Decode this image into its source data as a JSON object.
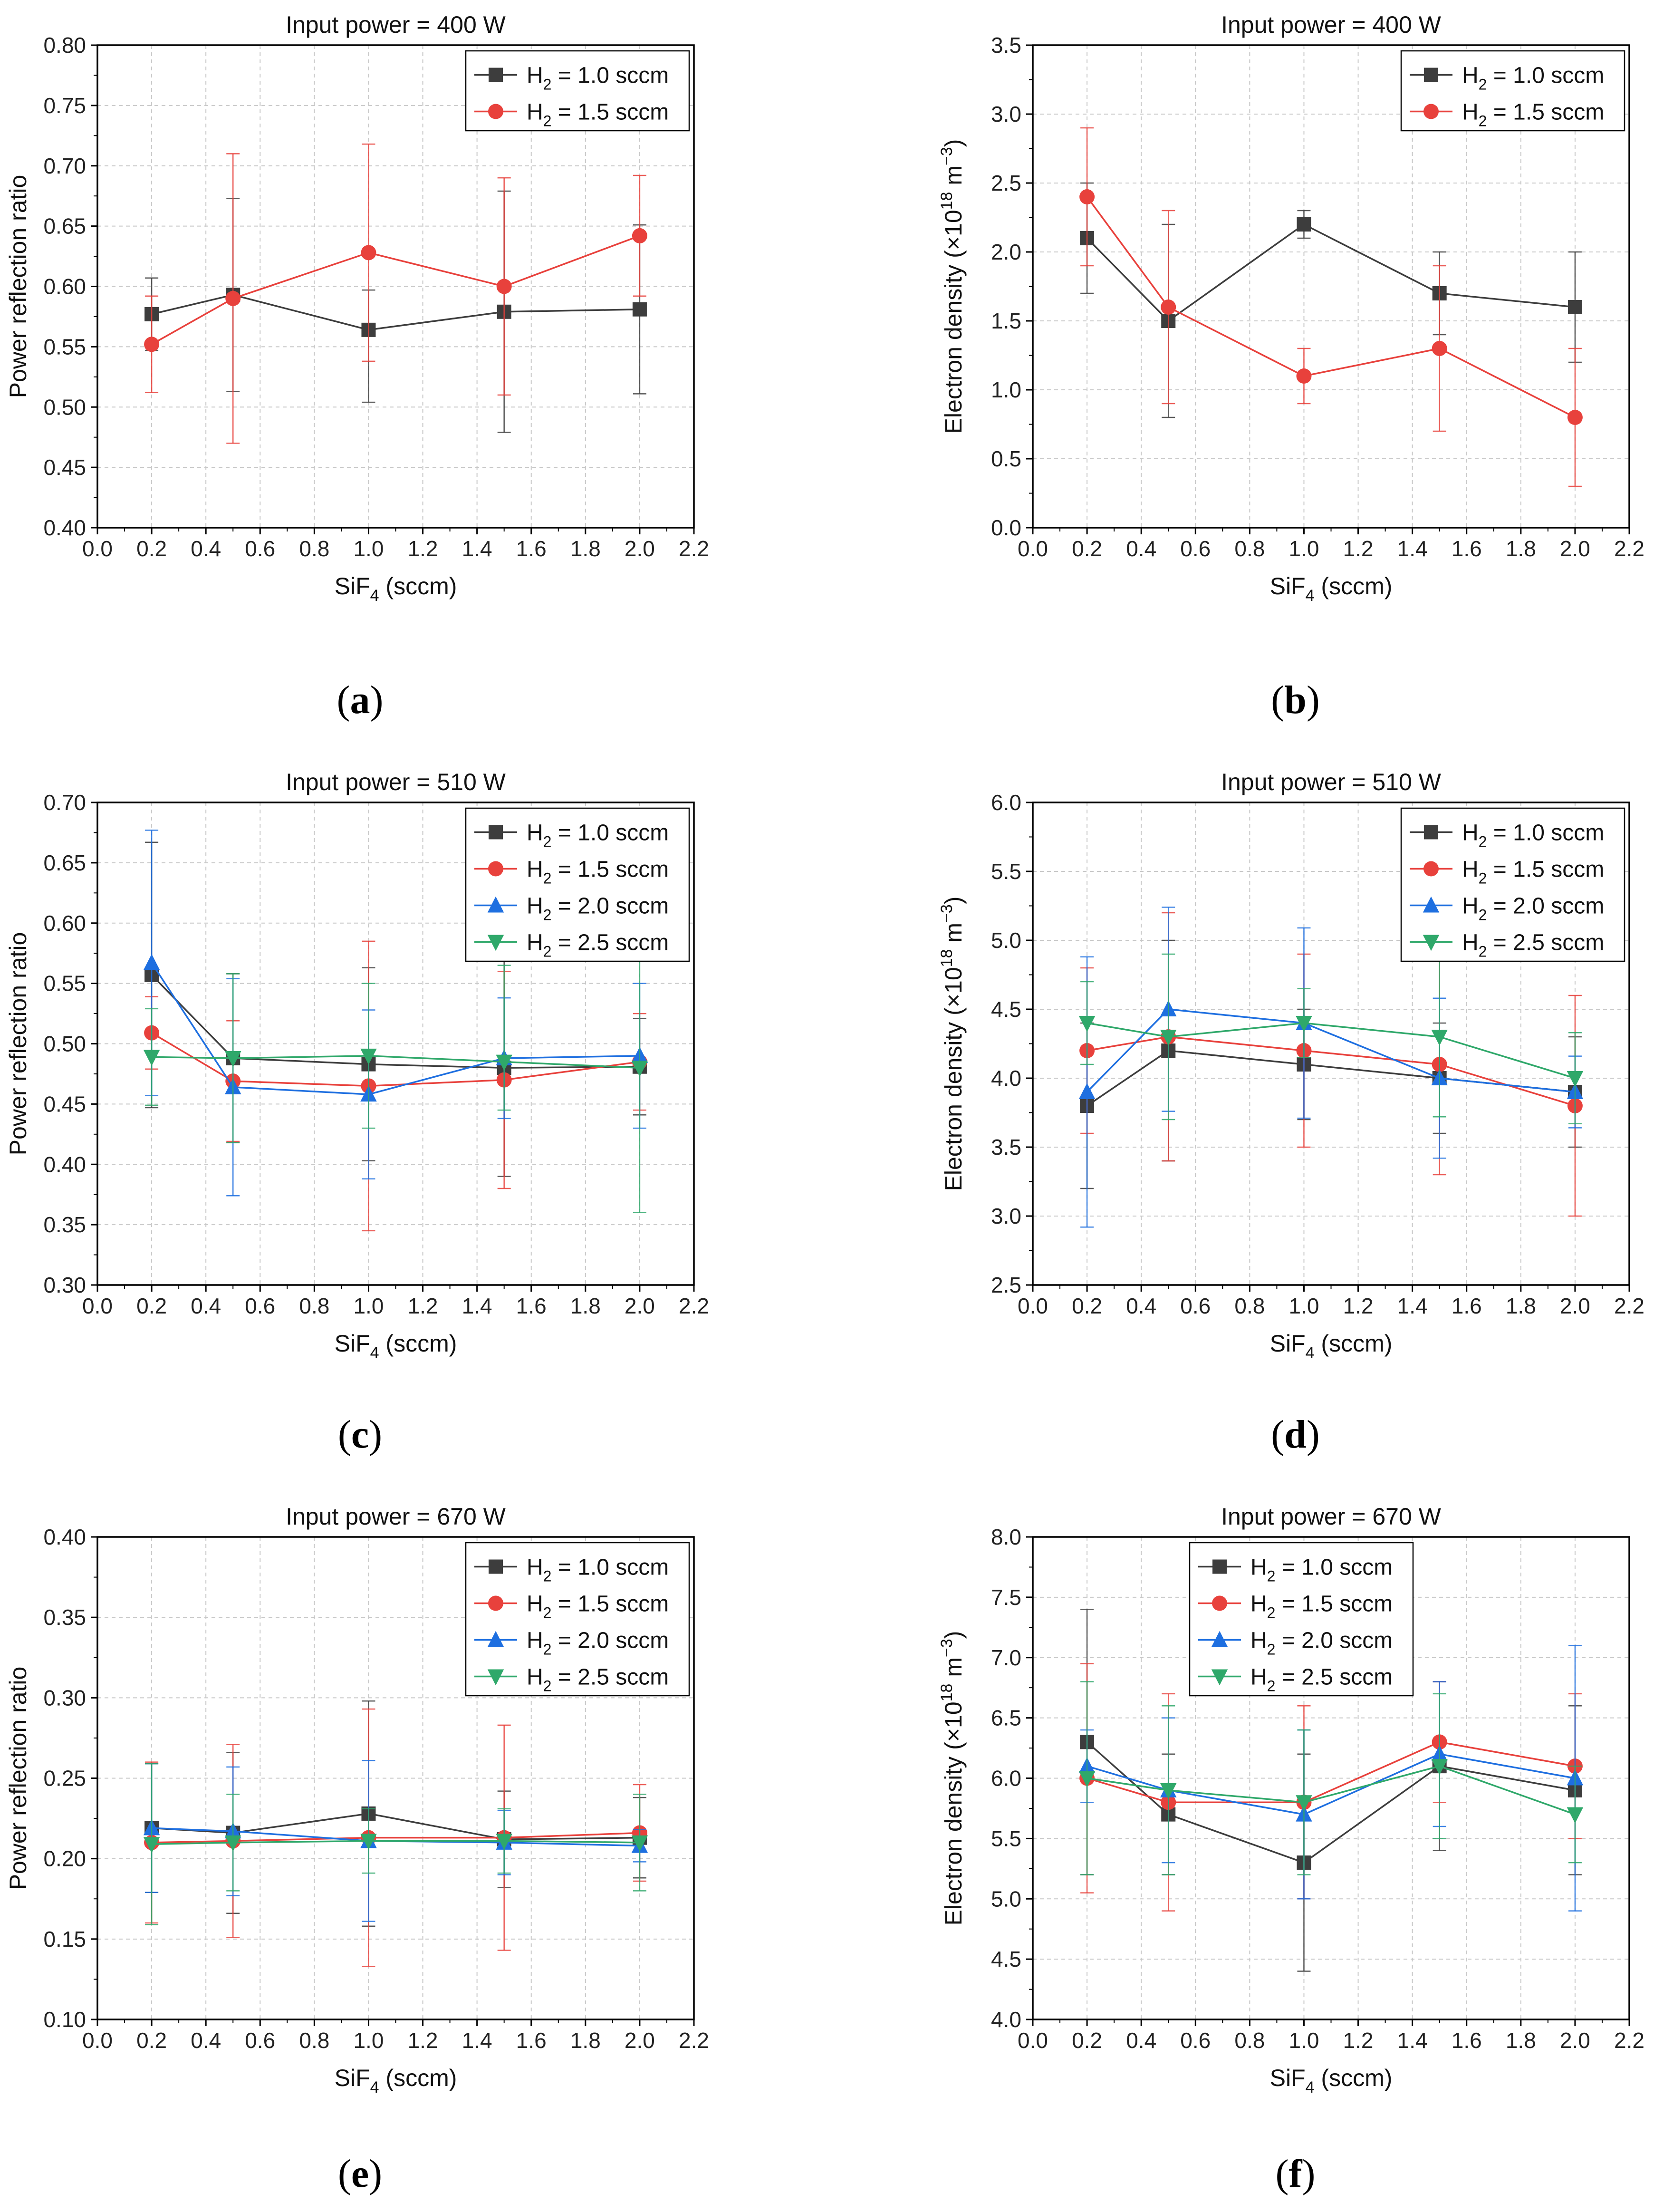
{
  "series_colors": {
    "h2_1_0": "#3d3d3d",
    "h2_1_5": "#e8413c",
    "h2_2_0": "#1e6fe0",
    "h2_2_5": "#2fa86a"
  },
  "chart_data": [
    {
      "id": "a",
      "panel_label": "(a)",
      "type": "line",
      "title": "Input power = 400 W",
      "xlabel_main": "SiF",
      "xlabel_sub": "4",
      "xlabel_rest": " (sccm)",
      "ylabel": "Power reflection ratio",
      "xlim": [
        0.0,
        2.2
      ],
      "ylim": [
        0.4,
        0.8
      ],
      "xticks": [
        "0.0",
        "0.2",
        "0.4",
        "0.6",
        "0.8",
        "1.0",
        "1.2",
        "1.4",
        "1.6",
        "1.8",
        "2.0",
        "2.2"
      ],
      "yticks": [
        "0.40",
        "0.45",
        "0.50",
        "0.55",
        "0.60",
        "0.65",
        "0.70",
        "0.75",
        "0.80"
      ],
      "grid": true,
      "legend_position": "top-right",
      "x": [
        0.2,
        0.5,
        1.0,
        1.5,
        2.0
      ],
      "series": [
        {
          "key": "h2_1_0",
          "marker": "square",
          "legend_prefix": "H",
          "legend_sub": "2",
          "legend_rest": " = 1.0 sccm",
          "values": [
            0.577,
            0.593,
            0.564,
            0.579,
            0.581
          ],
          "err_high": [
            0.607,
            0.673,
            0.597,
            0.679,
            0.651
          ],
          "err_low": [
            0.547,
            0.513,
            0.504,
            0.479,
            0.511
          ]
        },
        {
          "key": "h2_1_5",
          "marker": "circle",
          "legend_prefix": "H",
          "legend_sub": "2",
          "legend_rest": " = 1.5 sccm",
          "values": [
            0.552,
            0.59,
            0.628,
            0.6,
            0.642
          ],
          "err_high": [
            0.592,
            0.71,
            0.718,
            0.69,
            0.692
          ],
          "err_low": [
            0.512,
            0.47,
            0.538,
            0.51,
            0.592
          ]
        }
      ]
    },
    {
      "id": "b",
      "panel_label": "(b)",
      "type": "line",
      "title": "Input power = 400 W",
      "xlabel_main": "SiF",
      "xlabel_sub": "4",
      "xlabel_rest": " (sccm)",
      "ylabel": "Electron density (×10",
      "ylabel_sup": "18",
      "ylabel_mid": " m",
      "ylabel_sup2": "−3",
      "ylabel_end": ")",
      "xlim": [
        0.0,
        2.2
      ],
      "ylim": [
        0.0,
        3.5
      ],
      "xticks": [
        "0.0",
        "0.2",
        "0.4",
        "0.6",
        "0.8",
        "1.0",
        "1.2",
        "1.4",
        "1.6",
        "1.8",
        "2.0",
        "2.2"
      ],
      "yticks": [
        "0.0",
        "0.5",
        "1.0",
        "1.5",
        "2.0",
        "2.5",
        "3.0",
        "3.5"
      ],
      "grid": true,
      "legend_position": "top-right",
      "x": [
        0.2,
        0.5,
        1.0,
        1.5,
        2.0
      ],
      "series": [
        {
          "key": "h2_1_0",
          "marker": "square",
          "legend_prefix": "H",
          "legend_sub": "2",
          "legend_rest": " = 1.0 sccm",
          "values": [
            2.1,
            1.5,
            2.2,
            1.7,
            1.6
          ],
          "err_high": [
            2.5,
            2.2,
            2.3,
            2.0,
            2.0
          ],
          "err_low": [
            1.7,
            0.8,
            2.1,
            1.4,
            1.2
          ]
        },
        {
          "key": "h2_1_5",
          "marker": "circle",
          "legend_prefix": "H",
          "legend_sub": "2",
          "legend_rest": " = 1.5 sccm",
          "values": [
            2.4,
            1.6,
            1.1,
            1.3,
            0.8
          ],
          "err_high": [
            2.9,
            2.3,
            1.3,
            1.9,
            1.3
          ],
          "err_low": [
            1.9,
            0.9,
            0.9,
            0.7,
            0.3
          ]
        }
      ]
    },
    {
      "id": "c",
      "panel_label": "(c)",
      "type": "line",
      "title": "Input power = 510 W",
      "xlabel_main": "SiF",
      "xlabel_sub": "4",
      "xlabel_rest": " (sccm)",
      "ylabel": "Power reflection ratio",
      "xlim": [
        0.0,
        2.2
      ],
      "ylim": [
        0.3,
        0.7
      ],
      "xticks": [
        "0.0",
        "0.2",
        "0.4",
        "0.6",
        "0.8",
        "1.0",
        "1.2",
        "1.4",
        "1.6",
        "1.8",
        "2.0",
        "2.2"
      ],
      "yticks": [
        "0.30",
        "0.35",
        "0.40",
        "0.45",
        "0.50",
        "0.55",
        "0.60",
        "0.65",
        "0.70"
      ],
      "grid": true,
      "legend_position": "top-right",
      "x": [
        0.2,
        0.5,
        1.0,
        1.5,
        2.0
      ],
      "series": [
        {
          "key": "h2_1_0",
          "marker": "square",
          "legend_prefix": "H",
          "legend_sub": "2",
          "legend_rest": " = 1.0 sccm",
          "values": [
            0.557,
            0.488,
            0.483,
            0.48,
            0.481
          ],
          "err_high": [
            0.667,
            0.558,
            0.563,
            0.57,
            0.521
          ],
          "err_low": [
            0.447,
            0.418,
            0.403,
            0.39,
            0.441
          ]
        },
        {
          "key": "h2_1_5",
          "marker": "circle",
          "legend_prefix": "H",
          "legend_sub": "2",
          "legend_rest": " = 1.5 sccm",
          "values": [
            0.509,
            0.469,
            0.465,
            0.47,
            0.485
          ],
          "err_high": [
            0.539,
            0.519,
            0.585,
            0.56,
            0.525
          ],
          "err_low": [
            0.479,
            0.419,
            0.345,
            0.38,
            0.445
          ]
        },
        {
          "key": "h2_2_0",
          "marker": "triangle-up",
          "legend_prefix": "H",
          "legend_sub": "2",
          "legend_rest": " = 2.0 sccm",
          "values": [
            0.567,
            0.464,
            0.458,
            0.488,
            0.49
          ],
          "err_high": [
            0.677,
            0.554,
            0.528,
            0.538,
            0.55
          ],
          "err_low": [
            0.457,
            0.374,
            0.388,
            0.438,
            0.43
          ]
        },
        {
          "key": "h2_2_5",
          "marker": "triangle-down",
          "legend_prefix": "H",
          "legend_sub": "2",
          "legend_rest": " = 2.5 sccm",
          "values": [
            0.489,
            0.488,
            0.49,
            0.485,
            0.48
          ],
          "err_high": [
            0.529,
            0.558,
            0.55,
            0.565,
            0.6
          ],
          "err_low": [
            0.449,
            0.418,
            0.43,
            0.445,
            0.36
          ]
        }
      ]
    },
    {
      "id": "d",
      "panel_label": "(d)",
      "type": "line",
      "title": "Input power = 510 W",
      "xlabel_main": "SiF",
      "xlabel_sub": "4",
      "xlabel_rest": " (sccm)",
      "ylabel": "Electron density (×10",
      "ylabel_sup": "18",
      "ylabel_mid": " m",
      "ylabel_sup2": "−3",
      "ylabel_end": ")",
      "xlim": [
        0.0,
        2.2
      ],
      "ylim": [
        2.5,
        6.0
      ],
      "xticks": [
        "0.0",
        "0.2",
        "0.4",
        "0.6",
        "0.8",
        "1.0",
        "1.2",
        "1.4",
        "1.6",
        "1.8",
        "2.0",
        "2.2"
      ],
      "yticks": [
        "2.5",
        "3.0",
        "3.5",
        "4.0",
        "4.5",
        "5.0",
        "5.5",
        "6.0"
      ],
      "grid": true,
      "legend_position": "top-right",
      "x": [
        0.2,
        0.5,
        1.0,
        1.5,
        2.0
      ],
      "series": [
        {
          "key": "h2_1_0",
          "marker": "square",
          "legend_prefix": "H",
          "legend_sub": "2",
          "legend_rest": " = 1.0 sccm",
          "values": [
            3.8,
            4.2,
            4.1,
            4.0,
            3.9
          ],
          "err_high": [
            4.4,
            5.0,
            4.5,
            4.4,
            4.3
          ],
          "err_low": [
            3.2,
            3.4,
            3.7,
            3.6,
            3.5
          ]
        },
        {
          "key": "h2_1_5",
          "marker": "circle",
          "legend_prefix": "H",
          "legend_sub": "2",
          "legend_rest": " = 1.5 sccm",
          "values": [
            4.2,
            4.3,
            4.2,
            4.1,
            3.8
          ],
          "err_high": [
            4.8,
            5.2,
            4.9,
            4.9,
            4.6
          ],
          "err_low": [
            3.6,
            3.4,
            3.5,
            3.3,
            3.0
          ]
        },
        {
          "key": "h2_2_0",
          "marker": "triangle-up",
          "legend_prefix": "H",
          "legend_sub": "2",
          "legend_rest": " = 2.0 sccm",
          "values": [
            3.9,
            4.5,
            4.4,
            4.0,
            3.9
          ],
          "err_high": [
            4.88,
            5.24,
            5.09,
            4.58,
            4.16
          ],
          "err_low": [
            2.92,
            3.76,
            3.71,
            3.42,
            3.64
          ]
        },
        {
          "key": "h2_2_5",
          "marker": "triangle-down",
          "legend_prefix": "H",
          "legend_sub": "2",
          "legend_rest": " = 2.5 sccm",
          "values": [
            4.4,
            4.3,
            4.4,
            4.3,
            4.0
          ],
          "err_high": [
            4.7,
            4.9,
            4.65,
            4.88,
            4.33
          ],
          "err_low": [
            4.1,
            3.7,
            4.15,
            3.72,
            3.67
          ]
        }
      ]
    },
    {
      "id": "e",
      "panel_label": "(e)",
      "type": "line",
      "title": "Input power = 670 W",
      "xlabel_main": "SiF",
      "xlabel_sub": "4",
      "xlabel_rest": " (sccm)",
      "ylabel": "Power reflection ratio",
      "xlim": [
        0.0,
        2.2
      ],
      "ylim": [
        0.1,
        0.4
      ],
      "xticks": [
        "0.0",
        "0.2",
        "0.4",
        "0.6",
        "0.8",
        "1.0",
        "1.2",
        "1.4",
        "1.6",
        "1.8",
        "2.0",
        "2.2"
      ],
      "yticks": [
        "0.10",
        "0.15",
        "0.20",
        "0.25",
        "0.30",
        "0.35",
        "0.40"
      ],
      "grid": true,
      "legend_position": "top-right",
      "x": [
        0.2,
        0.5,
        1.0,
        1.5,
        2.0
      ],
      "series": [
        {
          "key": "h2_1_0",
          "marker": "square",
          "legend_prefix": "H",
          "legend_sub": "2",
          "legend_rest": " = 1.0 sccm",
          "values": [
            0.219,
            0.216,
            0.228,
            0.212,
            0.213
          ],
          "err_high": [
            0.259,
            0.266,
            0.298,
            0.242,
            0.238
          ],
          "err_low": [
            0.179,
            0.166,
            0.158,
            0.182,
            0.188
          ]
        },
        {
          "key": "h2_1_5",
          "marker": "circle",
          "legend_prefix": "H",
          "legend_sub": "2",
          "legend_rest": " = 1.5 sccm",
          "values": [
            0.21,
            0.211,
            0.213,
            0.213,
            0.216
          ],
          "err_high": [
            0.26,
            0.271,
            0.293,
            0.283,
            0.246
          ],
          "err_low": [
            0.16,
            0.151,
            0.133,
            0.143,
            0.186
          ]
        },
        {
          "key": "h2_2_0",
          "marker": "triangle-up",
          "legend_prefix": "H",
          "legend_sub": "2",
          "legend_rest": " = 2.0 sccm",
          "values": [
            0.219,
            0.217,
            0.211,
            0.21,
            0.208
          ],
          "err_high": [
            0.259,
            0.257,
            0.261,
            0.23,
            0.218
          ],
          "err_low": [
            0.179,
            0.177,
            0.161,
            0.19,
            0.198
          ]
        },
        {
          "key": "h2_2_5",
          "marker": "triangle-down",
          "legend_prefix": "H",
          "legend_sub": "2",
          "legend_rest": " = 2.5 sccm",
          "values": [
            0.209,
            0.21,
            0.211,
            0.211,
            0.21
          ],
          "err_high": [
            0.259,
            0.24,
            0.231,
            0.231,
            0.24
          ],
          "err_low": [
            0.159,
            0.18,
            0.191,
            0.191,
            0.18
          ]
        }
      ]
    },
    {
      "id": "f",
      "panel_label": "(f)",
      "type": "line",
      "title": "Input power = 670 W",
      "xlabel_main": "SiF",
      "xlabel_sub": "4",
      "xlabel_rest": " (sccm)",
      "ylabel": "Electron density (×10",
      "ylabel_sup": "18",
      "ylabel_mid": " m",
      "ylabel_sup2": "−3",
      "ylabel_end": ")",
      "xlim": [
        0.0,
        2.2
      ],
      "ylim": [
        4.0,
        8.0
      ],
      "xticks": [
        "0.0",
        "0.2",
        "0.4",
        "0.6",
        "0.8",
        "1.0",
        "1.2",
        "1.4",
        "1.6",
        "1.8",
        "2.0",
        "2.2"
      ],
      "yticks": [
        "4.0",
        "4.5",
        "5.0",
        "5.5",
        "6.0",
        "6.5",
        "7.0",
        "7.5",
        "8.0"
      ],
      "grid": true,
      "legend_position": "top-left",
      "x": [
        0.2,
        0.5,
        1.0,
        1.5,
        2.0
      ],
      "series": [
        {
          "key": "h2_1_0",
          "marker": "square",
          "legend_prefix": "H",
          "legend_sub": "2",
          "legend_rest": " = 1.0 sccm",
          "values": [
            6.3,
            5.7,
            5.3,
            6.1,
            5.9
          ],
          "err_high": [
            7.4,
            6.2,
            6.2,
            6.8,
            6.6
          ],
          "err_low": [
            5.2,
            5.2,
            4.4,
            5.4,
            5.2
          ]
        },
        {
          "key": "h2_1_5",
          "marker": "circle",
          "legend_prefix": "H",
          "legend_sub": "2",
          "legend_rest": " = 1.5 sccm",
          "values": [
            6.0,
            5.8,
            5.8,
            6.3,
            6.1
          ],
          "err_high": [
            6.95,
            6.7,
            6.6,
            6.8,
            6.7
          ],
          "err_low": [
            5.05,
            4.9,
            5.0,
            5.8,
            5.5
          ]
        },
        {
          "key": "h2_2_0",
          "marker": "triangle-up",
          "legend_prefix": "H",
          "legend_sub": "2",
          "legend_rest": " = 2.0 sccm",
          "values": [
            6.1,
            5.9,
            5.7,
            6.2,
            6.0
          ],
          "err_high": [
            6.4,
            6.5,
            6.4,
            6.8,
            7.1
          ],
          "err_low": [
            5.8,
            5.3,
            5.0,
            5.6,
            4.9
          ]
        },
        {
          "key": "h2_2_5",
          "marker": "triangle-down",
          "legend_prefix": "H",
          "legend_sub": "2",
          "legend_rest": " = 2.5 sccm",
          "values": [
            6.0,
            5.9,
            5.8,
            6.1,
            5.7
          ],
          "err_high": [
            6.8,
            6.6,
            6.4,
            6.7,
            6.1
          ],
          "err_low": [
            5.2,
            5.2,
            5.2,
            5.5,
            5.3
          ]
        }
      ]
    }
  ]
}
